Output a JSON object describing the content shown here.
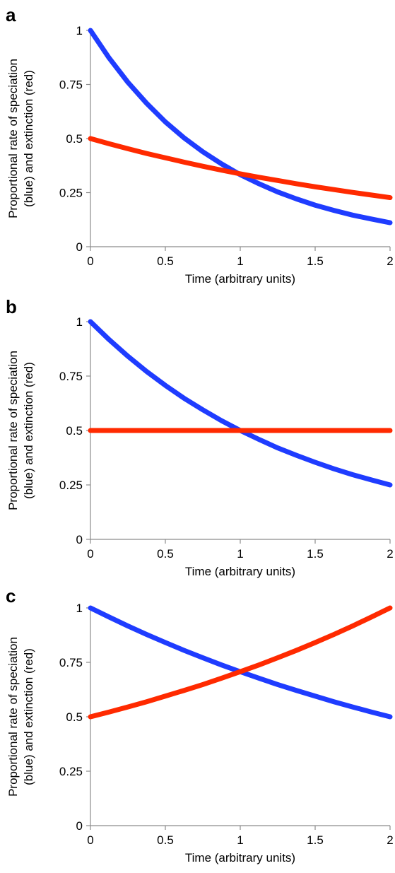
{
  "chart_data": [
    {
      "type": "line",
      "panel_label": "a",
      "xlabel": "Time (arbitrary units)",
      "ylabel_lines": [
        "Proportional rate of speciation",
        "(blue) and extinction (red)"
      ],
      "xlim": [
        0,
        2
      ],
      "ylim": [
        0,
        1
      ],
      "xticks": [
        "0",
        "0.5",
        "1",
        "1.5",
        "2"
      ],
      "yticks": [
        "0",
        "0.25",
        "0.5",
        "0.75",
        "1"
      ],
      "grid": false,
      "legend": "none",
      "x": [
        0,
        0.125,
        0.25,
        0.375,
        0.5,
        0.625,
        0.75,
        0.875,
        1,
        1.125,
        1.25,
        1.375,
        1.5,
        1.625,
        1.75,
        1.875,
        2
      ],
      "series": [
        {
          "color": "#1f3cff",
          "values": [
            1.0,
            0.872,
            0.76,
            0.663,
            0.577,
            0.503,
            0.439,
            0.383,
            0.333,
            0.291,
            0.253,
            0.221,
            0.192,
            0.168,
            0.146,
            0.128,
            0.111
          ]
        },
        {
          "color": "#ff2a00",
          "values": [
            0.5,
            0.476,
            0.453,
            0.431,
            0.411,
            0.391,
            0.372,
            0.354,
            0.337,
            0.321,
            0.306,
            0.291,
            0.277,
            0.264,
            0.251,
            0.239,
            0.227
          ]
        }
      ]
    },
    {
      "type": "line",
      "panel_label": "b",
      "xlabel": "Time (arbitrary units)",
      "ylabel_lines": [
        "Proportional rate of speciation",
        "(blue) and extinction (red)"
      ],
      "xlim": [
        0,
        2
      ],
      "ylim": [
        0,
        1
      ],
      "xticks": [
        "0",
        "0.5",
        "1",
        "1.5",
        "2"
      ],
      "yticks": [
        "0",
        "0.25",
        "0.5",
        "0.75",
        "1"
      ],
      "grid": false,
      "legend": "none",
      "x": [
        0,
        0.125,
        0.25,
        0.375,
        0.5,
        0.625,
        0.75,
        0.875,
        1,
        1.125,
        1.25,
        1.375,
        1.5,
        1.625,
        1.75,
        1.875,
        2
      ],
      "series": [
        {
          "color": "#1f3cff",
          "values": [
            1.0,
            0.917,
            0.841,
            0.771,
            0.707,
            0.648,
            0.595,
            0.545,
            0.5,
            0.459,
            0.42,
            0.386,
            0.354,
            0.324,
            0.297,
            0.273,
            0.25
          ]
        },
        {
          "color": "#ff2a00",
          "values": [
            0.5,
            0.5,
            0.5,
            0.5,
            0.5,
            0.5,
            0.5,
            0.5,
            0.5,
            0.5,
            0.5,
            0.5,
            0.5,
            0.5,
            0.5,
            0.5,
            0.5
          ]
        }
      ]
    },
    {
      "type": "line",
      "panel_label": "c",
      "xlabel": "Time (arbitrary units)",
      "ylabel_lines": [
        "Proportional rate of speciation",
        "(blue) and extinction (red)"
      ],
      "xlim": [
        0,
        2
      ],
      "ylim": [
        0,
        1
      ],
      "xticks": [
        "0",
        "0.5",
        "1",
        "1.5",
        "2"
      ],
      "yticks": [
        "0",
        "0.25",
        "0.5",
        "0.75",
        "1"
      ],
      "grid": false,
      "legend": "none",
      "x": [
        0,
        0.125,
        0.25,
        0.375,
        0.5,
        0.625,
        0.75,
        0.875,
        1,
        1.125,
        1.25,
        1.375,
        1.5,
        1.625,
        1.75,
        1.875,
        2
      ],
      "series": [
        {
          "color": "#1f3cff",
          "values": [
            1.0,
            0.958,
            0.917,
            0.878,
            0.841,
            0.805,
            0.771,
            0.738,
            0.707,
            0.677,
            0.648,
            0.621,
            0.595,
            0.569,
            0.545,
            0.522,
            0.5
          ]
        },
        {
          "color": "#ff2a00",
          "values": [
            0.5,
            0.522,
            0.545,
            0.569,
            0.595,
            0.621,
            0.648,
            0.677,
            0.707,
            0.738,
            0.771,
            0.805,
            0.841,
            0.878,
            0.917,
            0.958,
            1.0
          ]
        }
      ]
    }
  ]
}
